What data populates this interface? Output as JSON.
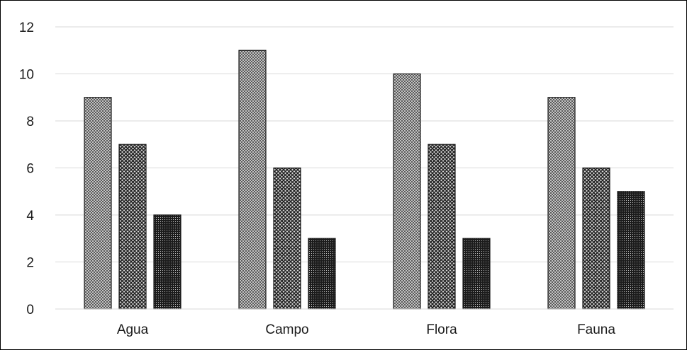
{
  "chart_data": {
    "type": "bar",
    "title": "",
    "xlabel": "",
    "ylabel": "",
    "categories": [
      "Agua",
      "Campo",
      "Flora",
      "Fauna"
    ],
    "series": [
      {
        "values": [
          9,
          11,
          10,
          9
        ],
        "pattern": "fine-crosshatch",
        "color": "#8c8c8c"
      },
      {
        "values": [
          7,
          6,
          7,
          6
        ],
        "pattern": "diamond-lattice",
        "color": "#4a4a4a"
      },
      {
        "values": [
          4,
          3,
          3,
          5
        ],
        "pattern": "dense-dots",
        "color": "#2a2a2a"
      }
    ],
    "ylim": [
      0,
      12
    ],
    "yticks": [
      0,
      2,
      4,
      6,
      8,
      10,
      12
    ],
    "grid": true,
    "legend": "none"
  }
}
